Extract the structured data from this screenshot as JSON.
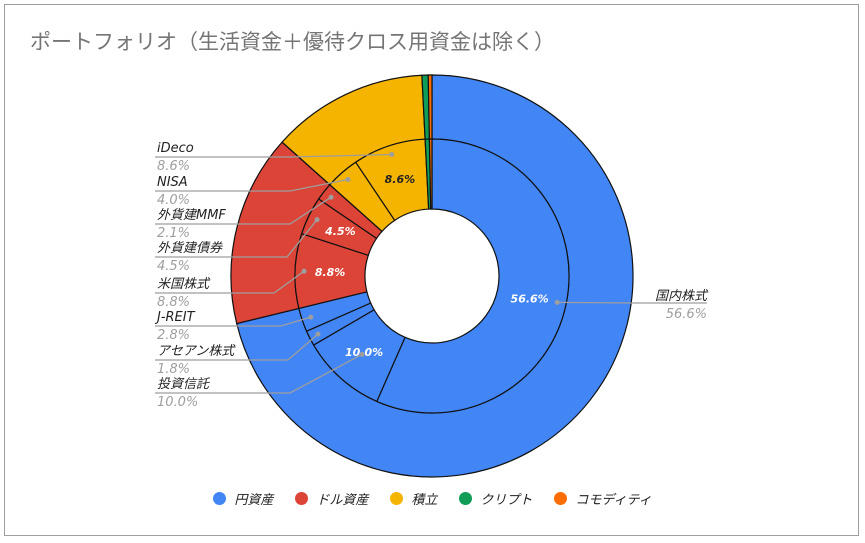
{
  "chart_data": {
    "type": "sunburst-donut",
    "title": "ポートフォリオ（生活資金＋優待クロス用資金は除く）",
    "unit": "%",
    "groups": [
      {
        "name": "円資産",
        "color": "#4285f4",
        "value": 71.2
      },
      {
        "name": "ドル資産",
        "color": "#db4437",
        "value": 15.4
      },
      {
        "name": "積立",
        "color": "#f4b400",
        "value": 12.6
      },
      {
        "name": "クリプト",
        "color": "#0f9d58",
        "value": 0.5
      },
      {
        "name": "コモディティ",
        "color": "#ff6d00",
        "value": 0.3
      }
    ],
    "items": [
      {
        "name": "国内株式",
        "group": 0,
        "value": 56.6,
        "pct_label": "56.6%",
        "inner_label": "56.6%"
      },
      {
        "name": "投資信託",
        "group": 0,
        "value": 10.0,
        "pct_label": "10.0%",
        "inner_label": "10.0%"
      },
      {
        "name": "アセアン株式",
        "group": 0,
        "value": 1.8,
        "pct_label": "1.8%",
        "inner_label": ""
      },
      {
        "name": "J-REIT",
        "group": 0,
        "value": 2.8,
        "pct_label": "2.8%",
        "inner_label": ""
      },
      {
        "name": "米国株式",
        "group": 1,
        "value": 8.8,
        "pct_label": "8.8%",
        "inner_label": "8.8%"
      },
      {
        "name": "外貨建債券",
        "group": 1,
        "value": 4.5,
        "pct_label": "4.5%",
        "inner_label": "4.5%"
      },
      {
        "name": "外貨建MMF",
        "group": 1,
        "value": 2.1,
        "pct_label": "2.1%",
        "inner_label": ""
      },
      {
        "name": "NISA",
        "group": 2,
        "value": 4.0,
        "pct_label": "4.0%",
        "inner_label": ""
      },
      {
        "name": "iDeco",
        "group": 2,
        "value": 8.6,
        "pct_label": "8.6%",
        "inner_label": "8.6%"
      },
      {
        "name": "クリプト",
        "group": 3,
        "value": 0.5,
        "pct_label": "",
        "inner_label": ""
      },
      {
        "name": "コモディティ",
        "group": 4,
        "value": 0.3,
        "pct_label": "",
        "inner_label": ""
      }
    ],
    "legend_position": "bottom"
  }
}
